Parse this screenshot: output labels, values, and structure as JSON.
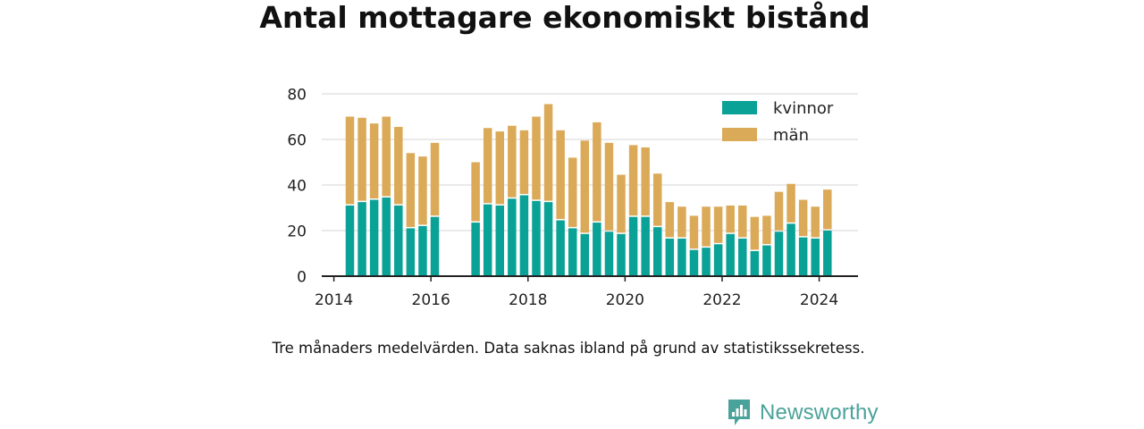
{
  "chart_data": {
    "type": "bar",
    "stacked": true,
    "title": "Antal mottagare ekonomiskt bistånd",
    "caption": "Tre månaders medelvärden. Data saknas ibland på grund av statistikssekretess.",
    "xlabel": "",
    "ylabel": "",
    "xlim": [
      2013.75,
      2024.8
    ],
    "ylim": [
      0,
      80
    ],
    "y_ticks": [
      "0",
      "20",
      "40",
      "60",
      "80"
    ],
    "x_ticks": [
      "2014",
      "2016",
      "2018",
      "2020",
      "2022",
      "2024"
    ],
    "grid": true,
    "legend_position": "top-right",
    "x": [
      2014.33,
      2014.58,
      2014.83,
      2015.08,
      2015.33,
      2015.58,
      2015.83,
      2016.08,
      2016.92,
      2017.17,
      2017.42,
      2017.67,
      2017.92,
      2018.17,
      2018.42,
      2018.67,
      2018.92,
      2019.17,
      2019.42,
      2019.67,
      2019.92,
      2020.17,
      2020.42,
      2020.67,
      2020.92,
      2021.17,
      2021.42,
      2021.67,
      2021.92,
      2022.17,
      2022.42,
      2022.67,
      2022.92,
      2023.17,
      2023.42,
      2023.67,
      2023.92,
      2024.17
    ],
    "series": [
      {
        "name": "kvinnor",
        "color": "#0aa196",
        "values": [
          31,
          32.5,
          33.5,
          34.5,
          31,
          21,
          22,
          26,
          23.5,
          31.5,
          31,
          34,
          35.5,
          33,
          32.5,
          24.5,
          21,
          18.5,
          23.5,
          19.5,
          18.5,
          26,
          26,
          21.5,
          16.5,
          16.5,
          11.5,
          12.5,
          14,
          18.5,
          16.5,
          11,
          13.5,
          19.5,
          23,
          17,
          16.5,
          20
        ]
      },
      {
        "name": "män",
        "color": "#dbaa59",
        "values": [
          39,
          37,
          33.5,
          35.5,
          34.5,
          33,
          30.5,
          32.5,
          26.5,
          33.5,
          32.5,
          32,
          28.5,
          37,
          43,
          39.5,
          31,
          41,
          44,
          39,
          26,
          31.5,
          30.5,
          23.5,
          16,
          14,
          15,
          18,
          16.5,
          12.5,
          14.5,
          15,
          13,
          17.5,
          17.5,
          16.5,
          14,
          18
        ]
      }
    ]
  },
  "brand": {
    "name": "Newsworthy",
    "logo_icon": "newsworthy-bar-chart-icon",
    "color": "#4aa39a"
  }
}
